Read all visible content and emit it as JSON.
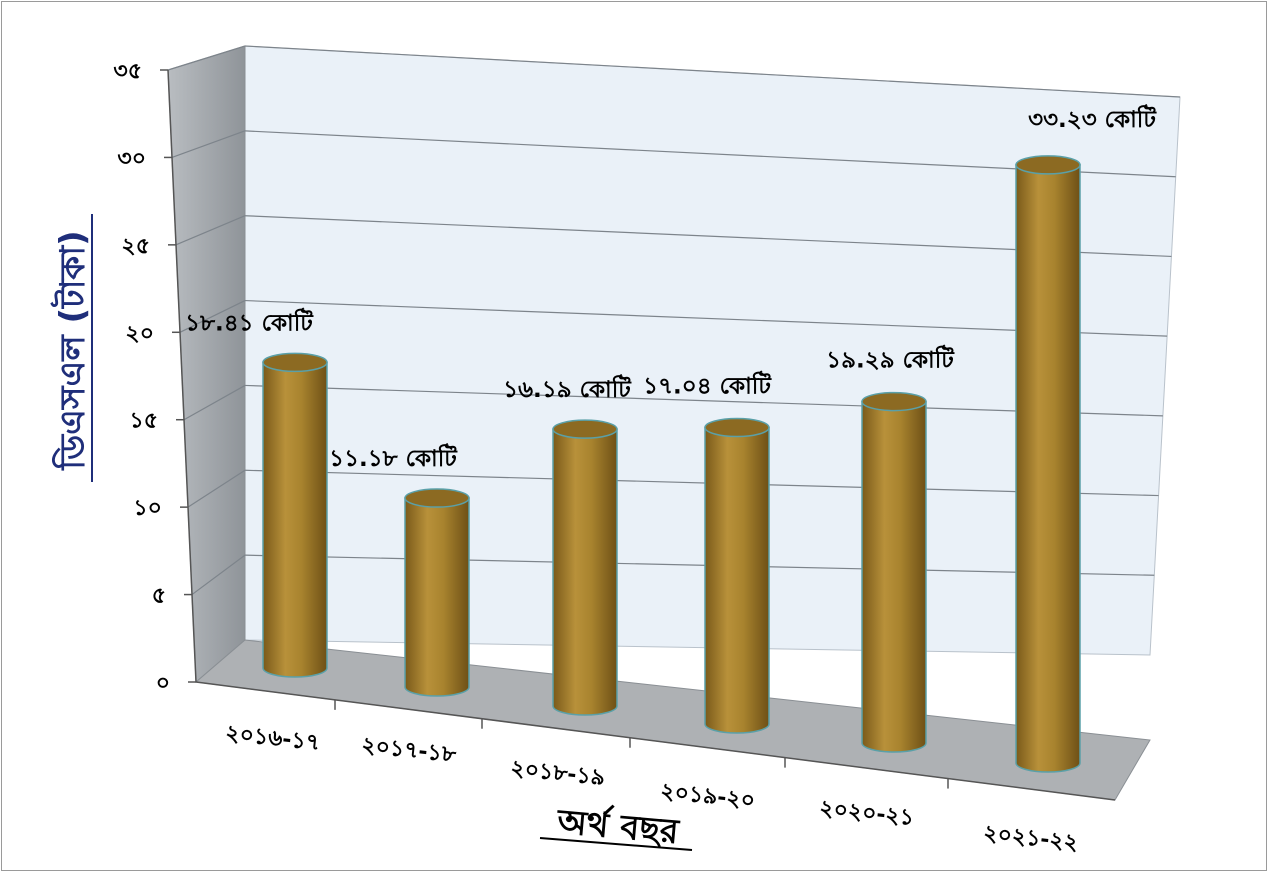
{
  "chart_data": {
    "type": "bar",
    "style": "3d-cylinder",
    "categories": [
      "২০১৬-১৭",
      "২০১৭-১৮",
      "২০১৮-১৯",
      "২০১৯-২০",
      "২০২০-২১",
      "২০২১-২২"
    ],
    "values": [
      18.41,
      11.18,
      16.19,
      17.04,
      19.29,
      33.23
    ],
    "data_labels": [
      "১৮.৪১ কোটি",
      "১১.১৮ কোটি",
      "১৬.১৯ কোটি",
      "১৭.০৪ কোটি",
      "১৯.২৯ কোটি",
      "৩৩.২৩ কোটি"
    ],
    "ylabel": "ডিএসএল (টাকা)",
    "xlabel": "অর্থ বছর",
    "ylim": [
      0,
      35
    ],
    "yticks": [
      0,
      5,
      10,
      15,
      20,
      25,
      30,
      35
    ],
    "ytick_labels": [
      "০",
      "৫",
      "১০",
      "১৫",
      "২০",
      "২৫",
      "৩০",
      "৩৫"
    ],
    "grid": true,
    "legend": "none",
    "colors": {
      "bar_fill": "#a8832e",
      "bar_top": "#8c6a22",
      "bar_edge": "#5aa0a8",
      "wall_back": "#e9f0f7",
      "wall_side": "#9ea3a8",
      "floor": "#aeb1b4",
      "ylabel_color": "#1f2e7a"
    }
  }
}
